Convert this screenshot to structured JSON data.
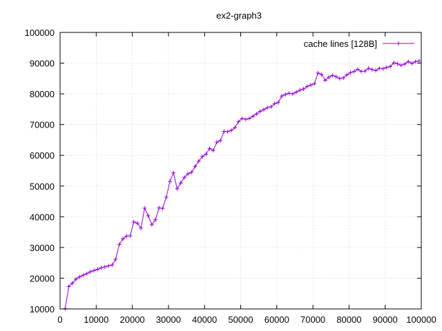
{
  "chart_data": {
    "type": "line",
    "title": "ex2-graph3",
    "xlabel": "",
    "ylabel": "",
    "xlim": [
      0,
      100000
    ],
    "ylim": [
      10000,
      100000
    ],
    "xticks": [
      0,
      10000,
      20000,
      30000,
      40000,
      50000,
      60000,
      70000,
      80000,
      90000,
      100000
    ],
    "yticks": [
      10000,
      20000,
      30000,
      40000,
      50000,
      60000,
      70000,
      80000,
      90000,
      100000
    ],
    "xtick_labels": [
      "0",
      "10000",
      "20000",
      "30000",
      "40000",
      "50000",
      "60000",
      "70000",
      "80000",
      "90000",
      "100000"
    ],
    "ytick_labels": [
      "10000",
      "20000",
      "30000",
      "40000",
      "50000",
      "60000",
      "70000",
      "80000",
      "90000",
      "100000"
    ],
    "grid": true,
    "legend_position": "top-right",
    "series": [
      {
        "name": "cache lines [128B]",
        "color": "#9400d3",
        "marker": "plus",
        "x": [
          1400,
          2400,
          3400,
          4400,
          5400,
          6400,
          7400,
          8400,
          9400,
          10400,
          11400,
          12400,
          13400,
          14400,
          15400,
          16400,
          17400,
          18400,
          19400,
          20400,
          21400,
          22400,
          23400,
          24400,
          25400,
          26400,
          27400,
          28400,
          29400,
          30400,
          31400,
          32400,
          33400,
          34400,
          35400,
          36400,
          37400,
          38400,
          39400,
          40400,
          41400,
          42400,
          43400,
          44400,
          45400,
          46400,
          47400,
          48400,
          49400,
          50400,
          51400,
          52400,
          53400,
          54400,
          55400,
          56400,
          57400,
          58400,
          59400,
          60400,
          61400,
          62400,
          63400,
          64400,
          65400,
          66400,
          67400,
          68400,
          69400,
          70400,
          71400,
          72400,
          73400,
          74400,
          75400,
          76400,
          77400,
          78400,
          79400,
          80400,
          81400,
          82400,
          83400,
          84400,
          85400,
          86400,
          87400,
          88400,
          89400,
          90400,
          91400,
          92400,
          93400,
          94400,
          95400,
          96400,
          97400,
          98400,
          99400
        ],
        "y": [
          10100,
          17300,
          18400,
          19700,
          20400,
          21000,
          21500,
          22100,
          22500,
          22900,
          23400,
          23700,
          24000,
          24300,
          26200,
          31000,
          32800,
          33700,
          33800,
          38300,
          37900,
          36300,
          42800,
          40300,
          37400,
          39000,
          42900,
          42700,
          46400,
          51500,
          54300,
          49100,
          51000,
          52800,
          54000,
          54500,
          56400,
          58100,
          59600,
          60400,
          62200,
          61600,
          64300,
          64800,
          67800,
          67700,
          68100,
          69000,
          71000,
          72000,
          71700,
          72000,
          72700,
          73500,
          74300,
          74900,
          75500,
          75800,
          76800,
          77200,
          79300,
          79800,
          80200,
          80000,
          80600,
          81200,
          81600,
          82400,
          82900,
          83300,
          86800,
          86300,
          84400,
          85400,
          86000,
          85600,
          85000,
          85200,
          86200,
          86900,
          87300,
          88000,
          87300,
          87400,
          88300,
          87900,
          87600,
          88300,
          88200,
          88600,
          88900,
          90100,
          89800,
          89300,
          89700,
          90500,
          89900,
          90500,
          90700
        ]
      }
    ]
  }
}
